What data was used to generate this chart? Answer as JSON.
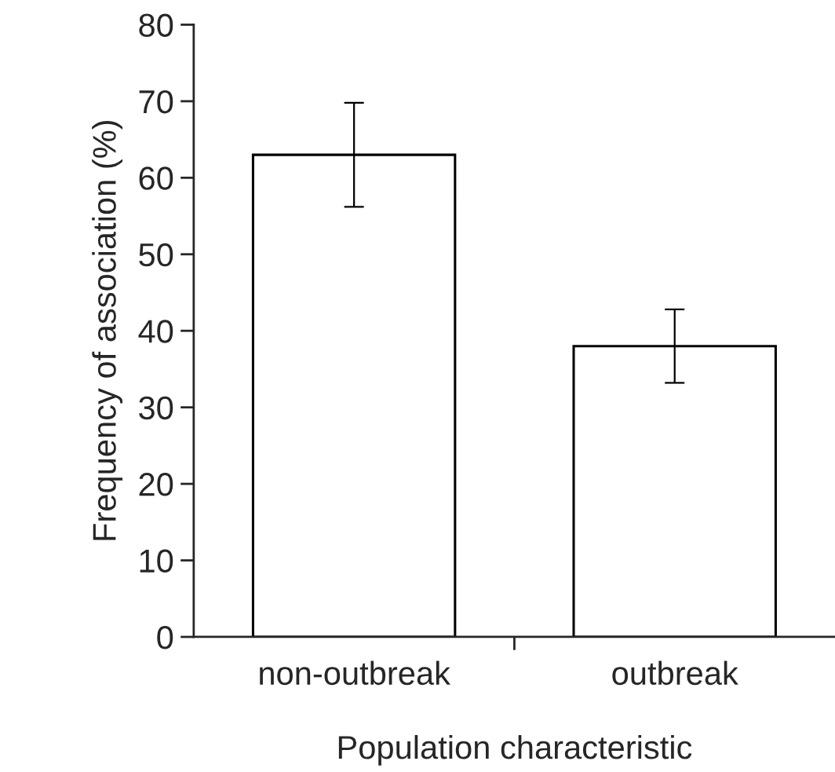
{
  "chart_data": {
    "type": "bar",
    "xlabel": "Population characteristic",
    "ylabel": "Frequency of association (%)",
    "categories": [
      "non-outbreak",
      "outbreak"
    ],
    "values": [
      63,
      38
    ],
    "errors": [
      [
        56.2,
        69.8
      ],
      [
        33.2,
        42.8
      ]
    ],
    "color": "#ffffff",
    "ylim": [
      0,
      80
    ],
    "yticks": [
      0,
      10,
      20,
      30,
      40,
      50,
      60,
      70,
      80
    ]
  }
}
